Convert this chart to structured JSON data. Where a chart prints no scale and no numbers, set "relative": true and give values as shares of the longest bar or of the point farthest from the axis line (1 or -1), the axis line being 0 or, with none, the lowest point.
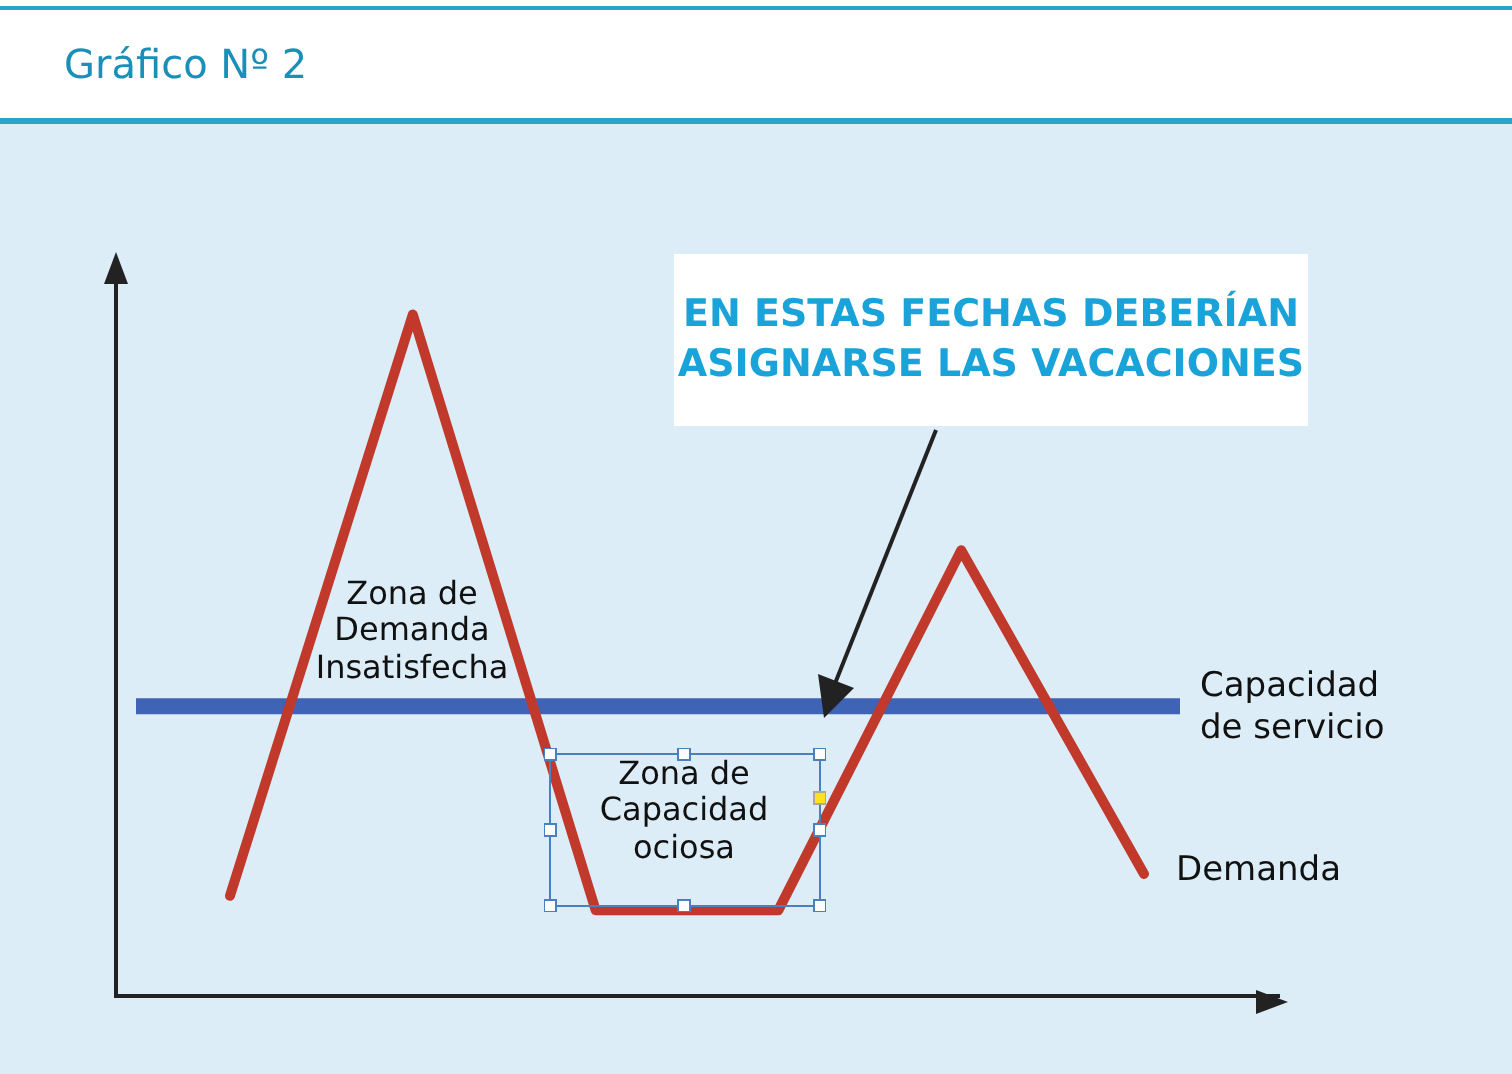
{
  "chart_data": {
    "type": "line",
    "title": "Gráfico Nº 2",
    "relative": true,
    "legend": false,
    "marker": "none",
    "line_style": "solid",
    "categories": [
      null,
      null,
      null,
      null,
      null,
      null
    ],
    "series": [
      {
        "name": "Demanda",
        "color": "#c0392b",
        "values": [
          0.147,
          1,
          0.126,
          0.126,
          0.654,
          0.179
        ]
      }
    ],
    "ref_lines": [
      {
        "axis": "y",
        "value": 0.425,
        "label": "Capacidad de servicio",
        "color": "#3f63b5"
      }
    ],
    "annotations": [
      "EN ESTAS FECHAS DEBERÍAN ASIGNARSE LAS VACACIONES",
      "Zona de Demanda Insatisfecha",
      "Zona de Capacidad ociosa"
    ]
  }
}
